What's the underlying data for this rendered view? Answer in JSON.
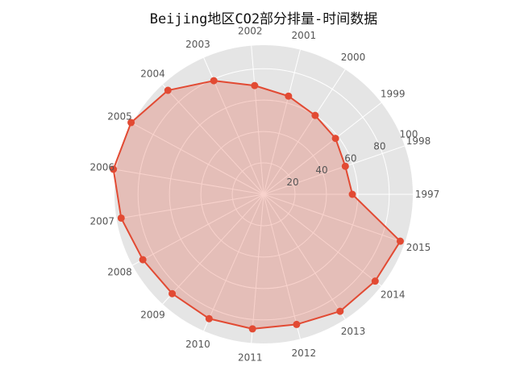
{
  "chart_data": {
    "type": "radar",
    "title": "Beijing地区CO2部分排量-时间数据",
    "categories": [
      "1997",
      "1998",
      "1999",
      "2000",
      "2001",
      "2002",
      "2003",
      "2004",
      "2005",
      "2006",
      "2007",
      "2008",
      "2009",
      "2010",
      "2011",
      "2012",
      "2013",
      "2014",
      "2015"
    ],
    "series": [
      {
        "name": "",
        "values": [
          56.5,
          55.0,
          58.0,
          60.0,
          64.5,
          69.5,
          79.0,
          90.0,
          96.0,
          97.0,
          92.0,
          87.5,
          86.0,
          86.5,
          86.0,
          85.5,
          89.0,
          90.0,
          92.0
        ]
      }
    ],
    "r_ticks": [
      20,
      40,
      60,
      80,
      100
    ],
    "r_tick_labels": [
      "20",
      "40",
      "60",
      "80",
      "100"
    ],
    "rlim": [
      0,
      95
    ],
    "grid": true,
    "colors": {
      "line": "#E24A33",
      "fill": "#E24A33",
      "panel": "#E5E5E5",
      "grid": "#FFFFFF"
    }
  }
}
